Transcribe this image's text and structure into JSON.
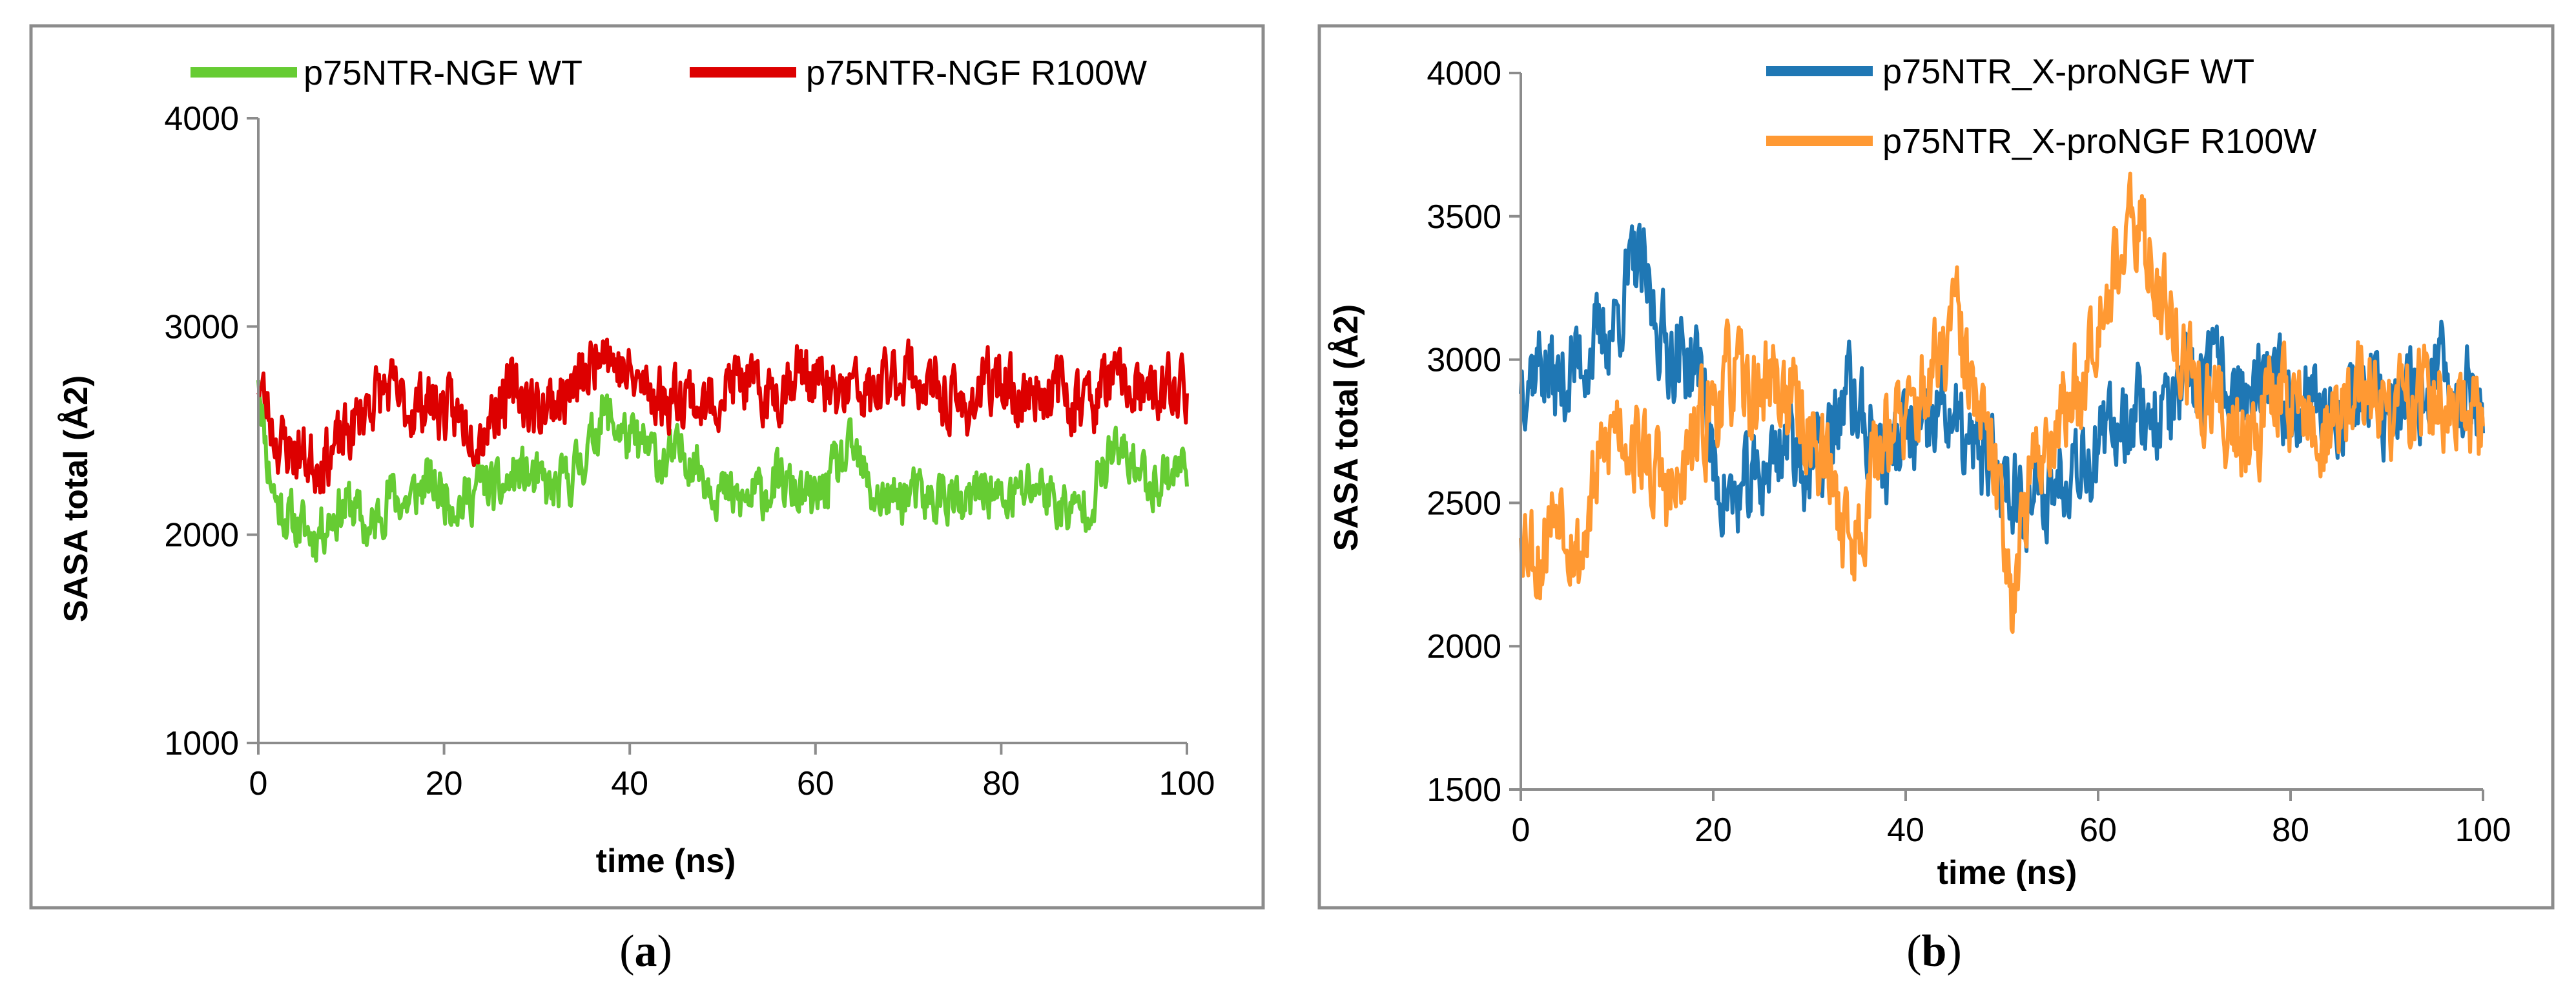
{
  "chart_data": [
    {
      "type": "line",
      "panel": "a",
      "caption_open": "(",
      "caption_letter": "a",
      "caption_close": ")",
      "xlabel": "time (ns)",
      "ylabel": "SASA total (Å2)",
      "xlim": [
        0,
        100
      ],
      "ylim": [
        1000,
        4000
      ],
      "xticks": [
        "0",
        "20",
        "40",
        "60",
        "80",
        "100"
      ],
      "yticks": [
        "1000",
        "2000",
        "3000",
        "4000"
      ],
      "legend_position": "top",
      "series": [
        {
          "name": "p75NTR-NGF WT",
          "color": "#66cc33",
          "keypoints": [
            [
              0,
              2800
            ],
            [
              1,
              2350
            ],
            [
              2,
              2150
            ],
            [
              4,
              2050
            ],
            [
              6,
              2000
            ],
            [
              8,
              2100
            ],
            [
              10,
              2150
            ],
            [
              12,
              2000
            ],
            [
              14,
              2200
            ],
            [
              16,
              2150
            ],
            [
              18,
              2250
            ],
            [
              20,
              2200
            ],
            [
              22,
              2150
            ],
            [
              24,
              2250
            ],
            [
              26,
              2200
            ],
            [
              28,
              2300
            ],
            [
              30,
              2250
            ],
            [
              32,
              2200
            ],
            [
              34,
              2300
            ],
            [
              36,
              2450
            ],
            [
              37,
              2600
            ],
            [
              38,
              2550
            ],
            [
              40,
              2450
            ],
            [
              42,
              2400
            ],
            [
              44,
              2350
            ],
            [
              46,
              2400
            ],
            [
              48,
              2300
            ],
            [
              50,
              2200
            ],
            [
              52,
              2150
            ],
            [
              54,
              2200
            ],
            [
              56,
              2250
            ],
            [
              58,
              2200
            ],
            [
              60,
              2150
            ],
            [
              62,
              2300
            ],
            [
              64,
              2400
            ],
            [
              66,
              2200
            ],
            [
              68,
              2150
            ],
            [
              70,
              2200
            ],
            [
              72,
              2150
            ],
            [
              74,
              2200
            ],
            [
              76,
              2100
            ],
            [
              78,
              2250
            ],
            [
              80,
              2150
            ],
            [
              82,
              2200
            ],
            [
              84,
              2250
            ],
            [
              86,
              2150
            ],
            [
              88,
              2100
            ],
            [
              90,
              2200
            ],
            [
              92,
              2400
            ],
            [
              94,
              2350
            ],
            [
              96,
              2250
            ],
            [
              98,
              2300
            ],
            [
              100,
              2350
            ]
          ],
          "noise": 110,
          "seed": 11
        },
        {
          "name": "p75NTR-NGF R100W",
          "color": "#dd0000",
          "keypoints": [
            [
              0,
              2750
            ],
            [
              2,
              2450
            ],
            [
              4,
              2400
            ],
            [
              6,
              2350
            ],
            [
              8,
              2400
            ],
            [
              10,
              2500
            ],
            [
              12,
              2650
            ],
            [
              14,
              2700
            ],
            [
              16,
              2600
            ],
            [
              18,
              2650
            ],
            [
              20,
              2600
            ],
            [
              22,
              2550
            ],
            [
              24,
              2500
            ],
            [
              26,
              2650
            ],
            [
              28,
              2700
            ],
            [
              30,
              2600
            ],
            [
              32,
              2650
            ],
            [
              34,
              2700
            ],
            [
              36,
              2800
            ],
            [
              37,
              3000
            ],
            [
              38,
              2850
            ],
            [
              40,
              2750
            ],
            [
              42,
              2700
            ],
            [
              44,
              2650
            ],
            [
              46,
              2700
            ],
            [
              48,
              2600
            ],
            [
              50,
              2700
            ],
            [
              52,
              2750
            ],
            [
              54,
              2650
            ],
            [
              56,
              2700
            ],
            [
              58,
              2800
            ],
            [
              60,
              2750
            ],
            [
              62,
              2650
            ],
            [
              64,
              2700
            ],
            [
              66,
              2650
            ],
            [
              68,
              2750
            ],
            [
              70,
              2800
            ],
            [
              72,
              2700
            ],
            [
              74,
              2650
            ],
            [
              76,
              2600
            ],
            [
              78,
              2700
            ],
            [
              80,
              2750
            ],
            [
              82,
              2650
            ],
            [
              84,
              2700
            ],
            [
              86,
              2700
            ],
            [
              88,
              2650
            ],
            [
              90,
              2650
            ],
            [
              92,
              2750
            ],
            [
              94,
              2700
            ],
            [
              96,
              2650
            ],
            [
              98,
              2700
            ],
            [
              100,
              2700
            ]
          ],
          "noise": 130,
          "seed": 23
        }
      ]
    },
    {
      "type": "line",
      "panel": "b",
      "caption_open": "(",
      "caption_letter": "b",
      "caption_close": ")",
      "xlabel": "time (ns)",
      "ylabel": "SASA total (Å2)",
      "xlim": [
        0,
        100
      ],
      "ylim": [
        1500,
        4000
      ],
      "xticks": [
        "0",
        "20",
        "40",
        "60",
        "80",
        "100"
      ],
      "yticks": [
        "1500",
        "2000",
        "2500",
        "3000",
        "3500",
        "4000"
      ],
      "legend_position": "top",
      "series": [
        {
          "name": "p75NTR_X-proNGF WT",
          "color": "#1f77b4",
          "keypoints": [
            [
              0,
              2950
            ],
            [
              2,
              3000
            ],
            [
              4,
              2900
            ],
            [
              6,
              3000
            ],
            [
              8,
              3050
            ],
            [
              10,
              3150
            ],
            [
              12,
              3350
            ],
            [
              13,
              3250
            ],
            [
              15,
              3050
            ],
            [
              17,
              3000
            ],
            [
              19,
              2950
            ],
            [
              20,
              2600
            ],
            [
              22,
              2500
            ],
            [
              24,
              2550
            ],
            [
              26,
              2650
            ],
            [
              28,
              2750
            ],
            [
              30,
              2600
            ],
            [
              32,
              2700
            ],
            [
              34,
              2900
            ],
            [
              36,
              2750
            ],
            [
              38,
              2650
            ],
            [
              40,
              2750
            ],
            [
              42,
              2700
            ],
            [
              44,
              2850
            ],
            [
              46,
              2700
            ],
            [
              48,
              2650
            ],
            [
              50,
              2600
            ],
            [
              52,
              2550
            ],
            [
              54,
              2500
            ],
            [
              56,
              2600
            ],
            [
              58,
              2700
            ],
            [
              60,
              2650
            ],
            [
              62,
              2800
            ],
            [
              64,
              2850
            ],
            [
              66,
              2800
            ],
            [
              68,
              2850
            ],
            [
              70,
              2900
            ],
            [
              72,
              2950
            ],
            [
              74,
              2900
            ],
            [
              76,
              2850
            ],
            [
              78,
              2900
            ],
            [
              80,
              2850
            ],
            [
              82,
              2900
            ],
            [
              84,
              2800
            ],
            [
              86,
              2850
            ],
            [
              88,
              2900
            ],
            [
              90,
              2800
            ],
            [
              92,
              2850
            ],
            [
              94,
              2900
            ],
            [
              96,
              2950
            ],
            [
              98,
              2900
            ],
            [
              100,
              2850
            ]
          ],
          "noise": 140,
          "seed": 37
        },
        {
          "name": "p75NTR_X-proNGF R100W",
          "color": "#ff9933",
          "keypoints": [
            [
              0,
              2450
            ],
            [
              2,
              2300
            ],
            [
              4,
              2550
            ],
            [
              6,
              2300
            ],
            [
              8,
              2600
            ],
            [
              10,
              2800
            ],
            [
              12,
              2700
            ],
            [
              14,
              2600
            ],
            [
              16,
              2500
            ],
            [
              18,
              2700
            ],
            [
              20,
              2850
            ],
            [
              22,
              2950
            ],
            [
              24,
              2850
            ],
            [
              26,
              2950
            ],
            [
              28,
              2850
            ],
            [
              30,
              2750
            ],
            [
              32,
              2600
            ],
            [
              34,
              2400
            ],
            [
              35,
              2350
            ],
            [
              36,
              2550
            ],
            [
              38,
              2800
            ],
            [
              40,
              2750
            ],
            [
              42,
              2900
            ],
            [
              44,
              3000
            ],
            [
              45,
              3200
            ],
            [
              46,
              3000
            ],
            [
              48,
              2750
            ],
            [
              50,
              2500
            ],
            [
              51,
              2200
            ],
            [
              52,
              2400
            ],
            [
              54,
              2700
            ],
            [
              56,
              2800
            ],
            [
              58,
              2900
            ],
            [
              60,
              3200
            ],
            [
              62,
              3350
            ],
            [
              64,
              3450
            ],
            [
              65,
              3400
            ],
            [
              67,
              3200
            ],
            [
              69,
              3000
            ],
            [
              71,
              2850
            ],
            [
              73,
              2800
            ],
            [
              75,
              2750
            ],
            [
              77,
              2800
            ],
            [
              79,
              2900
            ],
            [
              81,
              2850
            ],
            [
              83,
              2700
            ],
            [
              85,
              2800
            ],
            [
              87,
              2900
            ],
            [
              89,
              2850
            ],
            [
              91,
              2800
            ],
            [
              93,
              2900
            ],
            [
              95,
              2850
            ],
            [
              97,
              2800
            ],
            [
              99,
              2750
            ],
            [
              100,
              2800
            ]
          ],
          "noise": 150,
          "seed": 53
        }
      ]
    }
  ]
}
